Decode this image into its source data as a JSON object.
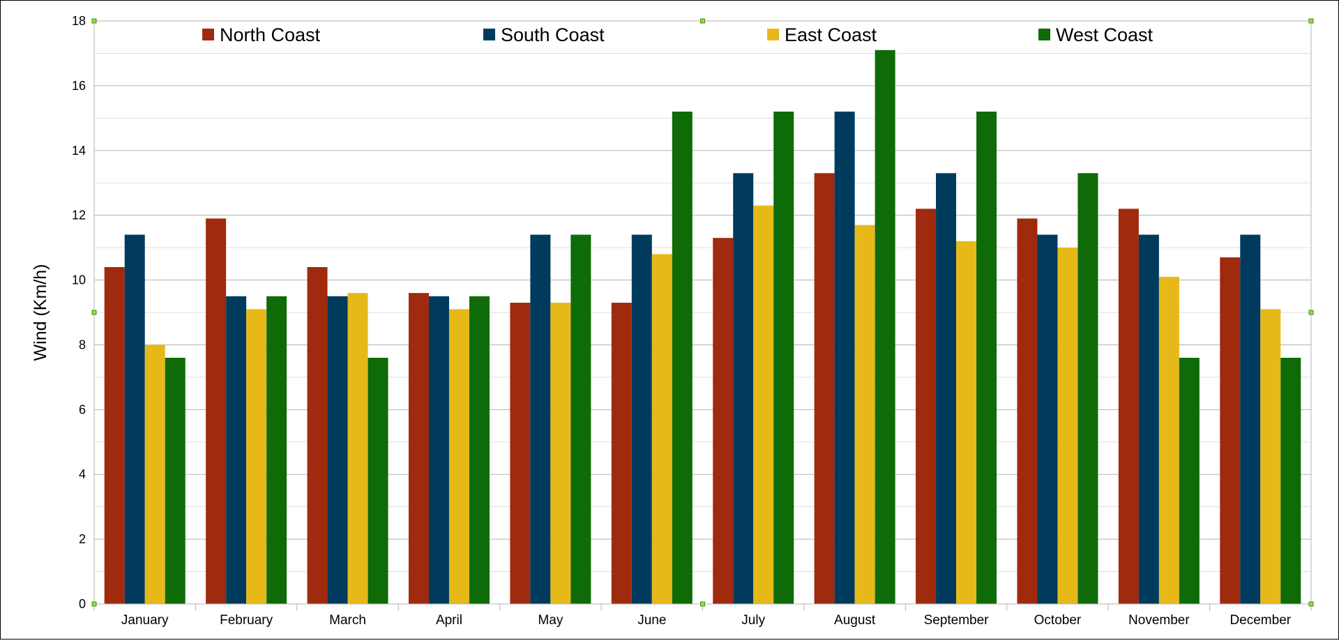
{
  "chart_data": {
    "type": "bar",
    "title": "",
    "xlabel": "",
    "ylabel": "Wind (Km/h)",
    "ylim": [
      0,
      18
    ],
    "y_ticks": [
      0,
      2,
      4,
      6,
      8,
      10,
      12,
      14,
      16,
      18
    ],
    "grid": "horizontal major and minor",
    "legend_position": "top",
    "categories": [
      "January",
      "February",
      "March",
      "April",
      "May",
      "June",
      "July",
      "August",
      "September",
      "October",
      "November",
      "December"
    ],
    "series": [
      {
        "name": "North Coast",
        "color": "#9f2a0e",
        "values": [
          10.4,
          11.9,
          10.4,
          9.6,
          9.3,
          9.3,
          11.3,
          13.3,
          12.2,
          11.9,
          12.2,
          10.7
        ]
      },
      {
        "name": "South Coast",
        "color": "#003b5e",
        "values": [
          11.4,
          9.5,
          9.5,
          9.5,
          11.4,
          11.4,
          13.3,
          15.2,
          13.3,
          11.4,
          11.4,
          11.4
        ]
      },
      {
        "name": "East Coast",
        "color": "#e6b919",
        "values": [
          8.0,
          9.1,
          9.6,
          9.1,
          9.3,
          10.8,
          12.3,
          11.7,
          11.2,
          11.0,
          10.1,
          9.1
        ]
      },
      {
        "name": "West Coast",
        "color": "#0f6a08",
        "values": [
          7.6,
          9.5,
          7.6,
          9.5,
          11.4,
          15.2,
          15.2,
          17.1,
          15.2,
          13.3,
          7.6,
          7.6
        ]
      }
    ]
  }
}
